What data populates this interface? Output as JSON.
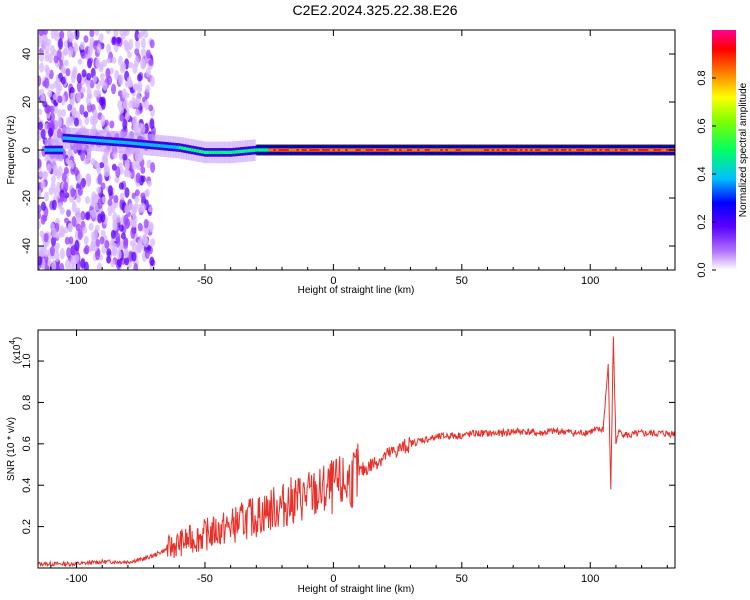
{
  "title": "C2E2.2024.325.22.38.E26",
  "chart_data": [
    {
      "type": "heatmap",
      "xlabel": "Height of straight line (km)",
      "ylabel": "Frequency (Hz)",
      "xlim": [
        -115,
        133
      ],
      "ylim": [
        -50,
        50
      ],
      "xticks": [
        -100,
        -50,
        0,
        50,
        100
      ],
      "xtick_labels": [
        "-100",
        "-50",
        "0",
        "50",
        "100"
      ],
      "yticks": [
        -40,
        -20,
        0,
        20,
        40
      ],
      "ytick_labels": [
        "-40",
        "-20",
        "0",
        "20",
        "40"
      ],
      "colorbar": {
        "label": "Normalized spectral amplitude",
        "range": [
          0,
          1
        ],
        "ticks": [
          0.0,
          0.2,
          0.4,
          0.6,
          0.8
        ],
        "tick_labels": [
          "0.0",
          "0.2",
          "0.4",
          "0.6",
          "0.8"
        ],
        "colormap": [
          "#ffffff",
          "#8000ff",
          "#0000ff",
          "#00c0ff",
          "#00ff80",
          "#80ff00",
          "#ffff00",
          "#ff8000",
          "#ff0000",
          "#ff00a0"
        ]
      },
      "ridge": {
        "description_free_values": true,
        "center_hz": [
          {
            "x": -105,
            "y": 5
          },
          {
            "x": -80,
            "y": 3
          },
          {
            "x": -70,
            "y": 2
          },
          {
            "x": -60,
            "y": 1
          },
          {
            "x": -50,
            "y": -1
          },
          {
            "x": -40,
            "y": -1
          },
          {
            "x": -30,
            "y": 0
          },
          {
            "x": 0,
            "y": 0
          },
          {
            "x": 50,
            "y": 0
          },
          {
            "x": 100,
            "y": 0
          },
          {
            "x": 133,
            "y": 0
          }
        ]
      }
    },
    {
      "type": "line",
      "xlabel": "Height of straight line (km)",
      "ylabel": "SNR (10 * v/v)",
      "multiplier_label": "(x10",
      "multiplier_exp": "4",
      "xlim": [
        -115,
        133
      ],
      "ylim": [
        0,
        1.15
      ],
      "xticks": [
        -100,
        -50,
        0,
        50,
        100
      ],
      "xtick_labels": [
        "-100",
        "-50",
        "0",
        "50",
        "100"
      ],
      "yticks": [
        0.2,
        0.4,
        0.6,
        0.8,
        1.0
      ],
      "ytick_labels": [
        "0.2",
        "0.4",
        "0.6",
        "0.8",
        "1.0"
      ],
      "line_color": "#e8302a",
      "series": [
        {
          "x": [
            -115,
            -100,
            -90,
            -80,
            -75,
            -70,
            -65,
            -60,
            -55,
            -50,
            -45,
            -40,
            -35,
            -30,
            -25,
            -20,
            -15,
            -10,
            -5,
            0,
            5,
            10,
            15,
            20,
            25,
            30,
            35,
            40,
            45,
            50,
            55,
            60,
            65,
            70,
            75,
            80,
            85,
            90,
            95,
            100,
            105,
            107,
            108,
            109,
            110,
            111,
            115,
            120,
            125,
            133
          ],
          "y": [
            0.02,
            0.02,
            0.03,
            0.03,
            0.04,
            0.06,
            0.09,
            0.12,
            0.14,
            0.16,
            0.18,
            0.2,
            0.23,
            0.25,
            0.28,
            0.3,
            0.33,
            0.35,
            0.36,
            0.39,
            0.41,
            0.46,
            0.5,
            0.54,
            0.57,
            0.6,
            0.62,
            0.63,
            0.64,
            0.64,
            0.65,
            0.65,
            0.65,
            0.66,
            0.66,
            0.65,
            0.66,
            0.66,
            0.65,
            0.66,
            0.67,
            0.98,
            0.38,
            1.12,
            0.6,
            0.66,
            0.64,
            0.65,
            0.65,
            0.65
          ]
        }
      ]
    }
  ]
}
